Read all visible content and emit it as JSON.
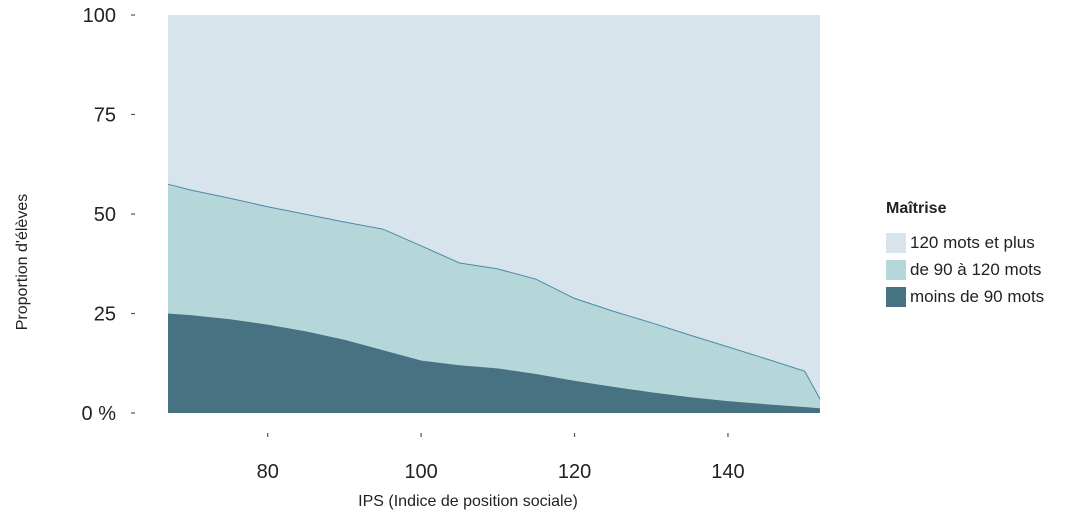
{
  "chart_data": {
    "type": "area",
    "stacked": true,
    "xlabel": "IPS (Indice de position sociale)",
    "ylabel": "Proportion d'élèves",
    "xlim": [
      67,
      152
    ],
    "ylim": [
      0,
      100
    ],
    "x_ticks": [
      80,
      100,
      120,
      140
    ],
    "y_ticks": [
      0,
      25,
      50,
      75,
      100
    ],
    "y_tick_labels": [
      "0 %",
      "25",
      "50",
      "75",
      "100"
    ],
    "x": [
      67,
      70,
      75,
      80,
      85,
      90,
      95,
      100,
      105,
      110,
      115,
      120,
      125,
      130,
      135,
      140,
      145,
      150,
      152
    ],
    "series": [
      {
        "name": "moins de 90 mots",
        "color": "#467282",
        "values": [
          25,
          24.6,
          23.6,
          22.2,
          20.5,
          18.4,
          15.8,
          13.2,
          12.0,
          11.2,
          9.8,
          8.1,
          6.6,
          5.2,
          4.0,
          3.0,
          2.2,
          1.5,
          1.2
        ]
      },
      {
        "name": "de 90 à 120 mots",
        "color": "#b6d7da",
        "values": [
          32.5,
          31.4,
          30.4,
          29.6,
          29.4,
          29.6,
          30.4,
          28.8,
          25.7,
          25.0,
          23.8,
          20.7,
          19.0,
          17.5,
          15.6,
          13.6,
          11.4,
          9.0,
          2.3
        ]
      },
      {
        "name": "120 mots et plus",
        "color": "#d8e4ec",
        "values": [
          42.5,
          44.0,
          46.0,
          48.2,
          50.1,
          52.0,
          53.8,
          58.0,
          62.3,
          63.8,
          66.4,
          71.2,
          74.4,
          77.3,
          80.4,
          83.4,
          86.4,
          89.5,
          96.5
        ]
      }
    ],
    "legend": {
      "title": "Maîtrise",
      "position": "right",
      "items": [
        "120 mots et plus",
        "de 90 à 120 mots",
        "moins de 90 mots"
      ]
    },
    "grid": false
  }
}
